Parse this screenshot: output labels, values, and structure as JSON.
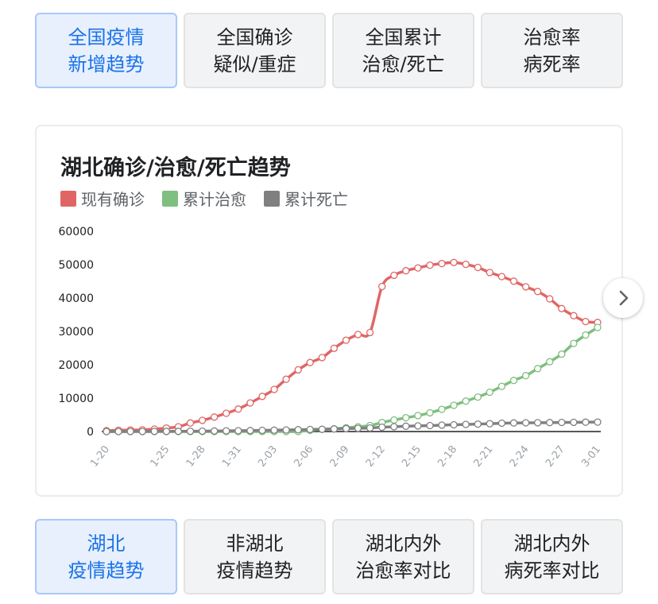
{
  "top_tabs": [
    {
      "label": "全国疫情\n新增趋势",
      "active": true
    },
    {
      "label": "全国确诊\n疑似/重症",
      "active": false
    },
    {
      "label": "全国累计\n治愈/死亡",
      "active": false
    },
    {
      "label": "治愈率\n病死率",
      "active": false
    }
  ],
  "bottom_tabs": [
    {
      "label": "湖北\n疫情趋势",
      "active": true
    },
    {
      "label": "非湖北\n疫情趋势",
      "active": false
    },
    {
      "label": "湖北内外\n治愈率对比",
      "active": false
    },
    {
      "label": "湖北内外\n病死率对比",
      "active": false
    }
  ],
  "next_icon": "chevron-right-icon",
  "chart_data": {
    "type": "line",
    "title": "湖北确诊/治愈/死亡趋势",
    "legend_position": "top-left",
    "grid": false,
    "ylim": [
      0,
      60000
    ],
    "yticks": [
      "60000",
      "50000",
      "40000",
      "30000",
      "20000",
      "10000",
      "0"
    ],
    "x": [
      "1-20",
      "1-21",
      "1-22",
      "1-23",
      "1-24",
      "1-25",
      "1-26",
      "1-27",
      "1-28",
      "1-29",
      "1-30",
      "1-31",
      "2-01",
      "2-02",
      "2-03",
      "2-04",
      "2-05",
      "2-06",
      "2-07",
      "2-08",
      "2-09",
      "2-10",
      "2-11",
      "2-12",
      "2-13",
      "2-14",
      "2-15",
      "2-16",
      "2-17",
      "2-18",
      "2-19",
      "2-20",
      "2-21",
      "2-22",
      "2-23",
      "2-24",
      "2-25",
      "2-26",
      "2-27",
      "2-28",
      "2-29",
      "3-01"
    ],
    "xticks": [
      "1-20",
      "1-25",
      "1-28",
      "1-31",
      "2-03",
      "2-06",
      "2-09",
      "2-12",
      "2-15",
      "2-18",
      "2-21",
      "2-24",
      "2-27",
      "3-01"
    ],
    "series": [
      {
        "name": "现有确诊",
        "color": "#e06666",
        "values": [
          270,
          375,
          444,
          494,
          729,
          1052,
          1423,
          2567,
          3349,
          4334,
          5486,
          6738,
          8565,
          10532,
          12627,
          15677,
          18483,
          20677,
          22160,
          24924,
          27349,
          29083,
          29659,
          43455,
          46806,
          48175,
          49030,
          49847,
          50338,
          50633,
          50091,
          49156,
          47647,
          46439,
          45054,
          43369,
          41957,
          39755,
          36829,
          34715,
          32959,
          32680
        ]
      },
      {
        "name": "累计治愈",
        "color": "#7fbf7f",
        "values": [
          0,
          0,
          0,
          0,
          0,
          0,
          0,
          0,
          0,
          0,
          0,
          0,
          0,
          0,
          0,
          0,
          0,
          375,
          633,
          817,
          1115,
          1439,
          1795,
          2686,
          3459,
          4131,
          4774,
          5623,
          6639,
          7862,
          9128,
          10337,
          11788,
          13557,
          15299,
          16748,
          18854,
          20912,
          23200,
          26403,
          28895,
          31187
        ]
      },
      {
        "name": "累计死亡",
        "color": "#808080",
        "values": [
          6,
          9,
          17,
          24,
          40,
          52,
          76,
          100,
          125,
          162,
          204,
          249,
          294,
          350,
          414,
          479,
          549,
          618,
          699,
          780,
          871,
          974,
          1068,
          1310,
          1457,
          1596,
          1696,
          1789,
          1921,
          2029,
          2144,
          2250,
          2346,
          2495,
          2563,
          2615,
          2641,
          2682,
          2727,
          2761,
          2803,
          2834
        ]
      }
    ]
  }
}
